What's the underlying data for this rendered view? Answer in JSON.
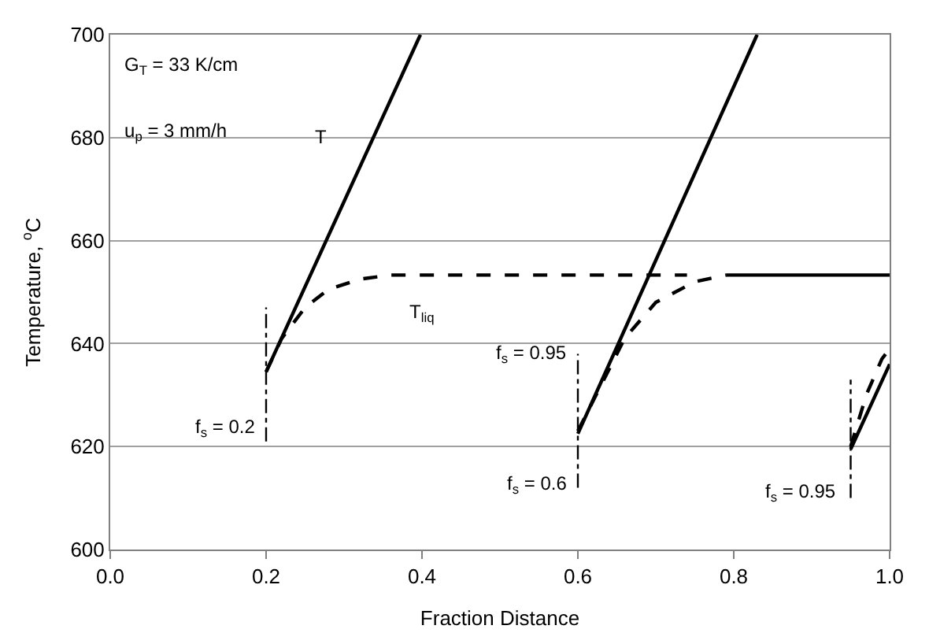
{
  "chart_data": {
    "type": "line",
    "xlabel": "Fraction Distance",
    "ylabel": "Temperature, $^{o}$C",
    "xlim": [
      0,
      1
    ],
    "xticks": [
      {
        "value": 0,
        "label": "0.0"
      },
      {
        "value": 0.2,
        "label": "0.2"
      },
      {
        "value": 0.4,
        "label": "0.4"
      },
      {
        "value": 0.6,
        "label": "0.6"
      },
      {
        "value": 0.8,
        "label": "0.8"
      },
      {
        "value": 1,
        "label": "1.0"
      }
    ],
    "ylim": [
      600,
      700
    ],
    "yticks": [
      600,
      620,
      640,
      660,
      680,
      700
    ],
    "grid": "y",
    "series": [
      {
        "color": "#000000",
        "line_style": "solid",
        "x": [
          0.2,
          0.398
        ],
        "values": [
          634.5,
          700
        ]
      },
      {
        "color": "#000000",
        "line_style": "solid",
        "x": [
          0.6,
          0.83
        ],
        "values": [
          622.5,
          700
        ]
      },
      {
        "color": "#000000",
        "line_style": "solid",
        "x": [
          0.95,
          1.0
        ],
        "values": [
          619.5,
          636
        ]
      },
      {
        "color": "#000000",
        "line_style": "dashed",
        "x": [
          0.2,
          0.22,
          0.25,
          0.28,
          0.32,
          0.36,
          0.74
        ],
        "values": [
          634.5,
          641,
          647,
          650.5,
          652.5,
          653.3,
          653.3
        ]
      },
      {
        "color": "#000000",
        "line_style": "dashed",
        "x": [
          0.6,
          0.63,
          0.66,
          0.7,
          0.75,
          0.79
        ],
        "values": [
          623,
          632,
          641,
          648,
          652,
          653.3
        ]
      },
      {
        "color": "#000000",
        "line_style": "solid",
        "x": [
          0.79,
          1.0
        ],
        "values": [
          653.3,
          653.3
        ]
      },
      {
        "color": "#000000",
        "line_style": "dashed",
        "x": [
          0.95,
          0.97,
          0.99,
          1.0
        ],
        "values": [
          620,
          630,
          637,
          639
        ]
      },
      {
        "color": "#000000",
        "line_style": "dashdot",
        "x": [
          0.2,
          0.2
        ],
        "values": [
          621,
          647
        ]
      },
      {
        "color": "#000000",
        "line_style": "dashdot",
        "x": [
          0.6,
          0.6
        ],
        "values": [
          612,
          638
        ]
      },
      {
        "color": "#000000",
        "line_style": "dashdot",
        "x": [
          0.95,
          0.95
        ],
        "values": [
          610,
          633
        ]
      }
    ],
    "annotations": [
      "G$_{T}$ = 33 K/cm",
      "u$_{p}$ = 3 mm/h",
      "T",
      "T$_{liq}$",
      "f$_{s}$ = 0.2",
      "f$_{s}$ = 0.95",
      "f$_{s}$ = 0.6",
      "f$_{s}$ = 0.95"
    ]
  }
}
